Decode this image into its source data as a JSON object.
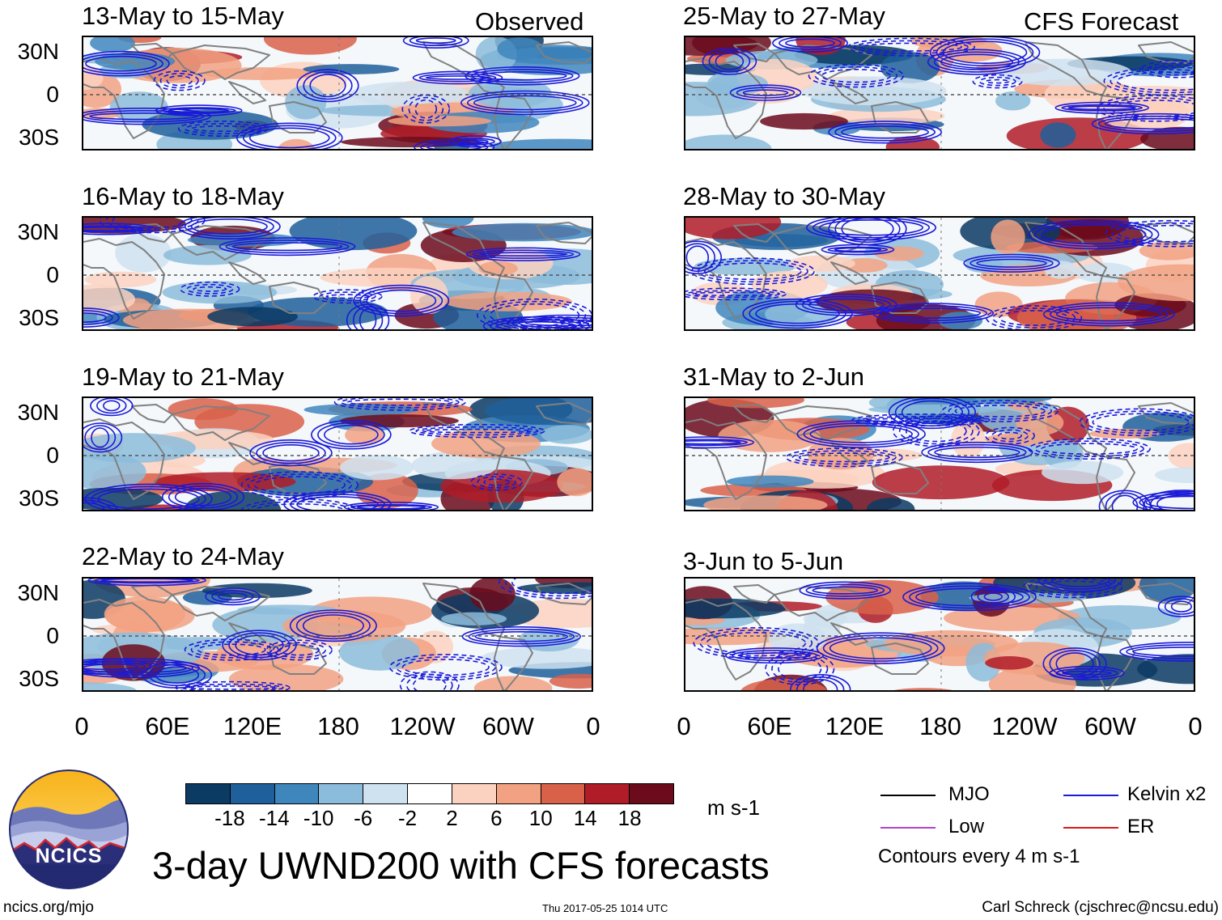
{
  "columns": {
    "left_heading": "Observed",
    "right_heading": "CFS Forecast"
  },
  "panels_left": [
    {
      "title": "13-May to 15-May"
    },
    {
      "title": "16-May to 18-May"
    },
    {
      "title": "19-May to 21-May"
    },
    {
      "title": "22-May to 24-May"
    }
  ],
  "panels_right": [
    {
      "title": "25-May to 27-May"
    },
    {
      "title": "28-May to 30-May"
    },
    {
      "title": "31-May to 2-Jun"
    },
    {
      "title": "3-Jun to 5-Jun"
    }
  ],
  "lat_labels": [
    "30N",
    "0",
    "30S"
  ],
  "lon_labels": [
    "0",
    "60E",
    "120E",
    "180",
    "120W",
    "60W",
    "0"
  ],
  "colorbar": {
    "colors": [
      "#0b3a63",
      "#1f5f9b",
      "#3f86bd",
      "#8cbcdb",
      "#cfe2f0",
      "#ffffff",
      "#fbd2bf",
      "#f2a282",
      "#d9614a",
      "#b01c28",
      "#6b0b1c"
    ],
    "labels": [
      "-18",
      "-14",
      "-10",
      "-6",
      "-2",
      "2",
      "6",
      "10",
      "14",
      "18"
    ],
    "units": "m s-1"
  },
  "legend": {
    "mjo": "MJO",
    "kelvin": "Kelvin x2",
    "low": "Low",
    "er": "ER",
    "contour_note": "Contours every 4 m s-1",
    "colors": {
      "mjo": "#000000",
      "kelvin": "#1a1ad8",
      "low": "#b043cc",
      "er": "#d81a1a"
    }
  },
  "logo": {
    "text": "NCICS"
  },
  "main_title": "3-day UWND200 with CFS forecasts",
  "footer": {
    "url": "ncics.org/mjo",
    "timestamp": "Thu 2017-05-25 1014 UTC",
    "credit": "Carl Schreck (cjschrec@ncsu.edu)"
  }
}
